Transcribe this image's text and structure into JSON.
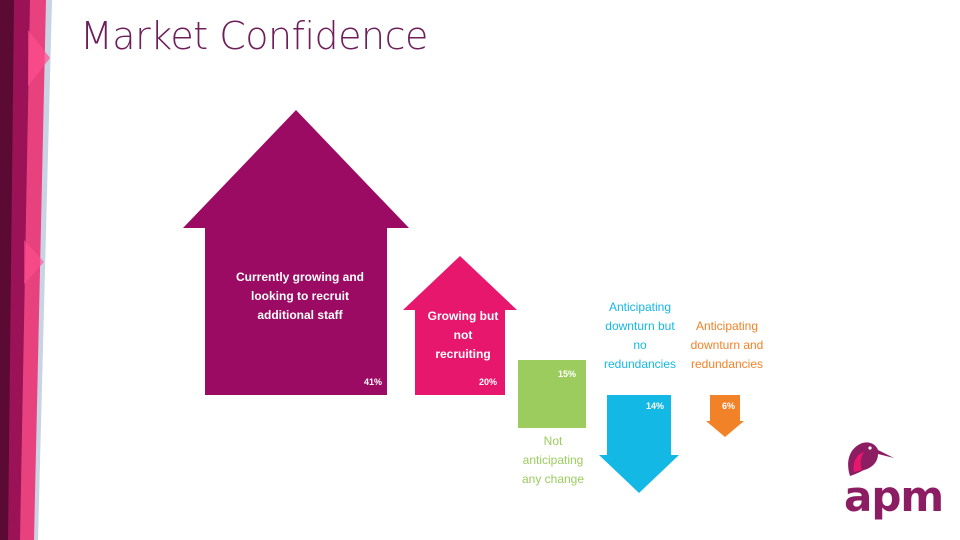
{
  "slide": {
    "title": "Market Confidence"
  },
  "colors": {
    "growing_recruit": "#9b0b63",
    "growing_not_recruit": "#e6176c",
    "no_change": "#9ccc5e",
    "downturn_no_redundancies": "#14b8e4",
    "downturn_redundancies": "#f28228",
    "title": "#6d1f5a"
  },
  "chart_data": {
    "type": "bar",
    "title": "",
    "categories": [
      "Currently growing and looking to recruit additional staff",
      "Growing but not recruiting",
      "Not anticipating any change",
      "Anticipating downturn but no redundancies",
      "Anticipating downturn and redundancies"
    ],
    "values": [
      41,
      20,
      15,
      14,
      6
    ],
    "value_labels": [
      "41%",
      "20%",
      "15%",
      "14%",
      "6%"
    ],
    "direction": [
      "up",
      "up",
      "flat",
      "down",
      "down"
    ]
  },
  "logo": {
    "text": "apm",
    "icon": "heron-bird-icon"
  }
}
